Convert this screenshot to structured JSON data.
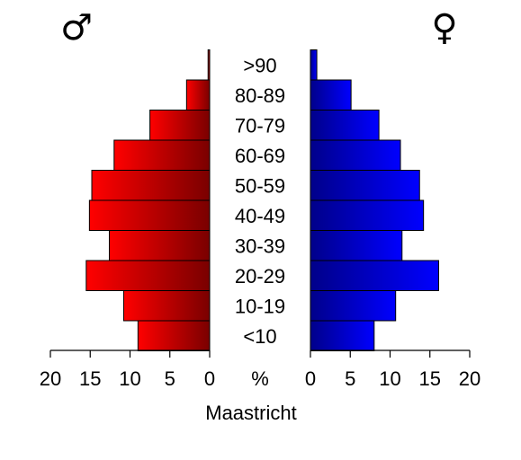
{
  "chart_data": {
    "type": "bar",
    "title": "",
    "subtitle": "Maastricht",
    "center_unit": "%",
    "xlim": [
      0,
      20
    ],
    "x_ticks": [
      0,
      5,
      10,
      15,
      20
    ],
    "categories": [
      ">90",
      "80-89",
      "70-79",
      "60-69",
      "50-59",
      "40-49",
      "30-39",
      "20-29",
      "10-19",
      "<10"
    ],
    "series": [
      {
        "name": "♂",
        "side": "left",
        "color": "#ff0000",
        "color_dark": "#7a0000",
        "values": [
          0.2,
          2.9,
          7.5,
          12.0,
          14.8,
          15.1,
          12.6,
          15.5,
          10.8,
          9.0
        ]
      },
      {
        "name": "♀",
        "side": "right",
        "color": "#0000ff",
        "color_dark": "#00008a",
        "values": [
          0.8,
          5.1,
          8.6,
          11.3,
          13.7,
          14.2,
          11.5,
          16.1,
          10.7,
          8.0
        ]
      }
    ],
    "grid": false,
    "legend": "none"
  }
}
